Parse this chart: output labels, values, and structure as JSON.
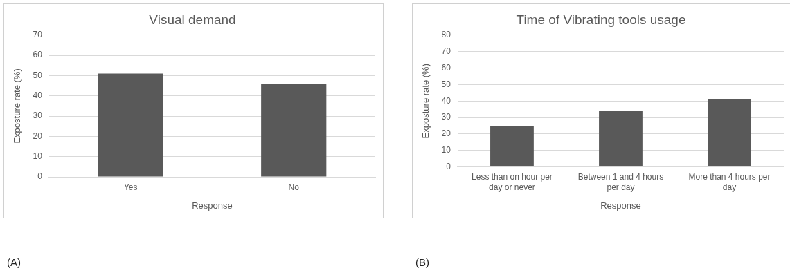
{
  "chart_data": [
    {
      "type": "bar",
      "title": "Visual demand",
      "xlabel": "Response",
      "ylabel": "Exposture rate (%)",
      "categories": [
        "Yes",
        "No"
      ],
      "values": [
        51,
        46
      ],
      "color": "#595959",
      "ylim": [
        0,
        70
      ],
      "yticks": [
        0,
        10,
        20,
        30,
        40,
        50,
        60,
        70
      ],
      "grid": "y",
      "annotations": [
        "(A)"
      ]
    },
    {
      "type": "bar",
      "title": "Time of Vibrating tools usage",
      "xlabel": "Response",
      "ylabel": "Exposture rate (%)",
      "categories": [
        "Less than on hour per day or never",
        "Between 1 and 4 hours per day",
        "More than 4 hours per day"
      ],
      "values": [
        25,
        34,
        41
      ],
      "color": "#595959",
      "ylim": [
        0,
        80
      ],
      "yticks": [
        0,
        10,
        20,
        30,
        40,
        50,
        60,
        70,
        80
      ],
      "grid": "y",
      "annotations": [
        "(B)"
      ]
    }
  ]
}
